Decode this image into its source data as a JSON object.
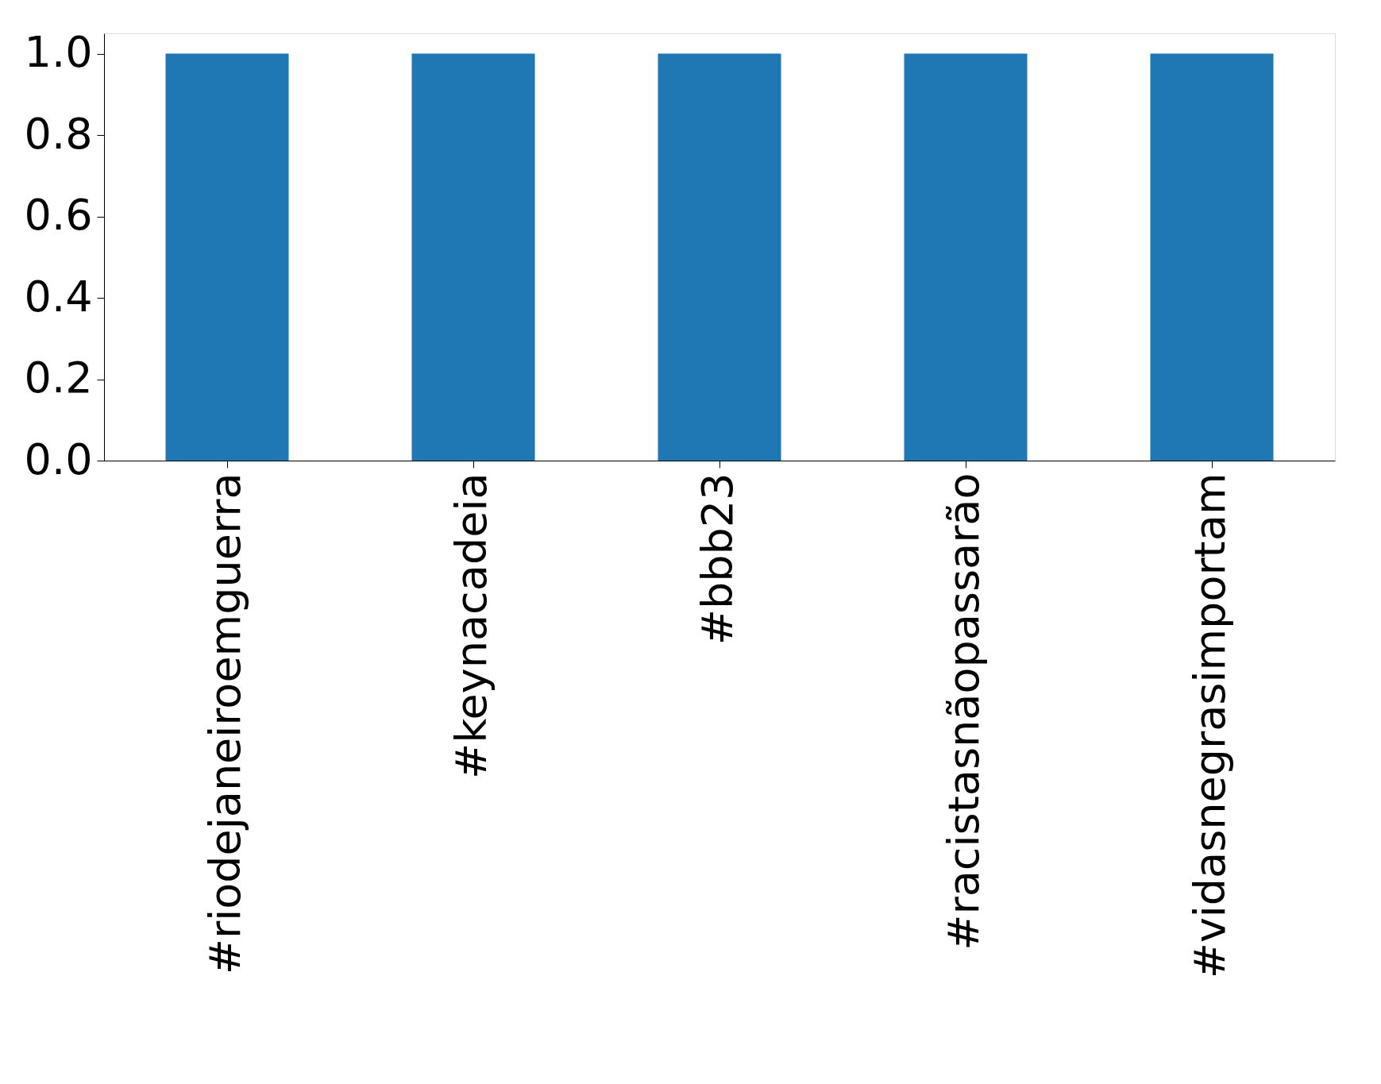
{
  "chart_data": {
    "type": "bar",
    "categories": [
      "#riodejaneiroemguerra",
      "#keynacadeia",
      "#bbb23",
      "#racistasnãopassarão",
      "#vidasnegrasimportam"
    ],
    "values": [
      1.0,
      1.0,
      1.0,
      1.0,
      1.0
    ],
    "color": "#1f77b4",
    "ylim": [
      0,
      1.05
    ],
    "yticks": [
      {
        "value": 0,
        "label": "0.0"
      },
      0.2,
      0.4,
      0.6,
      0.8,
      {
        "value": 1,
        "label": "1.0"
      }
    ],
    "grid": false
  }
}
